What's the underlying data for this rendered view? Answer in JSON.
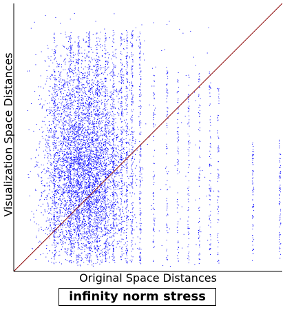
{
  "chart_data": {
    "type": "scatter",
    "title": "infinity norm stress",
    "xlabel": "Original Space Distances",
    "ylabel": "Visualization Space Distances",
    "xlim": [
      0,
      1
    ],
    "ylim": [
      0,
      1
    ],
    "grid": false,
    "reference_line": {
      "from": [
        0,
        0
      ],
      "to": [
        1,
        1
      ]
    },
    "colors": {
      "points": "#0000ff",
      "reference_line": "#8b0000",
      "axes": "#000000"
    },
    "dense_region": {
      "x_range": [
        0.05,
        0.5
      ],
      "y_range": [
        0.02,
        0.9
      ]
    },
    "vertical_streaks_x": [
      0.15,
      0.21,
      0.24,
      0.28,
      0.31,
      0.34,
      0.37,
      0.4,
      0.42,
      0.44,
      0.47,
      0.52,
      0.57,
      0.61,
      0.65,
      0.69,
      0.73,
      0.76,
      0.89,
      0.99
    ]
  }
}
